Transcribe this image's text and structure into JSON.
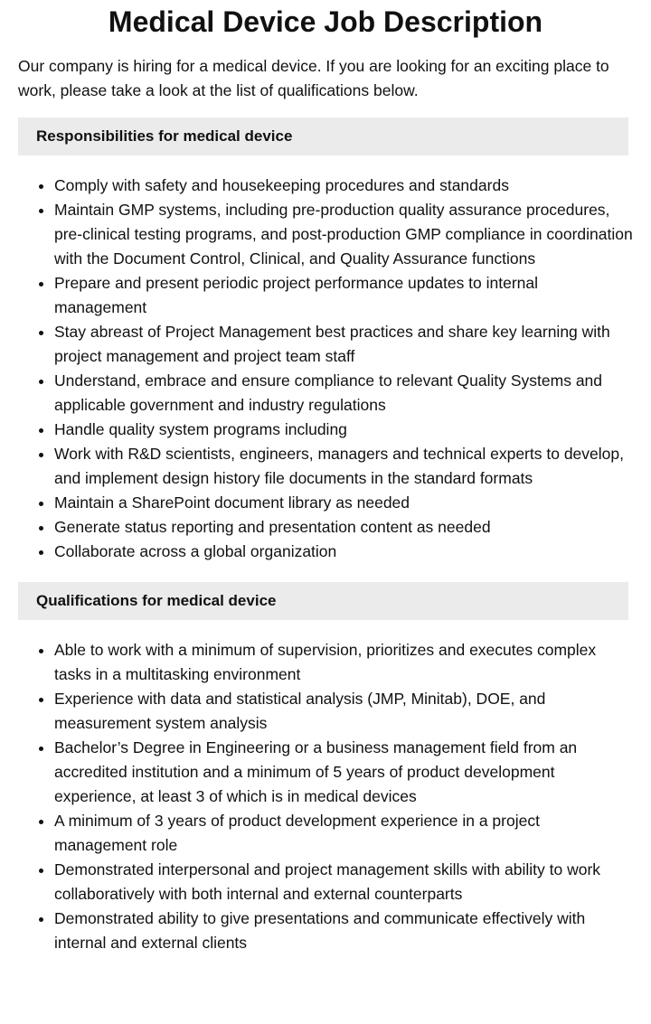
{
  "title": "Medical Device Job Description",
  "intro": "Our company is hiring for a medical device. If you are looking for an exciting place to work, please take a look at the list of qualifications below.",
  "responsibilities": {
    "heading": "Responsibilities for medical device",
    "items": [
      "Comply with safety and housekeeping procedures and standards",
      "Maintain GMP systems, including pre-production quality assurance procedures, pre-clinical testing programs, and post-production GMP compliance in coordination with the Document Control, Clinical, and Quality Assurance functions",
      "Prepare and present periodic project performance updates to internal management",
      "Stay abreast of Project Management best practices and share key learning with project management and project team staff",
      "Understand, embrace and ensure compliance to relevant Quality Systems and applicable government and industry regulations",
      "Handle quality system programs including",
      "Work with R&D scientists, engineers, managers and technical experts to develop, and implement design history file documents in the standard formats",
      "Maintain a SharePoint document library as needed",
      "Generate status reporting and presentation content as needed",
      "Collaborate across a global organization"
    ]
  },
  "qualifications": {
    "heading": "Qualifications for medical device",
    "items": [
      "Able to work with a minimum of supervision, prioritizes and executes complex tasks in a multitasking environment",
      "Experience with data and statistical analysis (JMP, Minitab), DOE, and measurement system analysis",
      "Bachelor’s Degree in Engineering or a business management field from an accredited institution and a minimum of 5 years of product development experience, at least 3 of which is in medical devices",
      "A minimum of 3 years of product development experience in a project management role",
      "Demonstrated interpersonal and project management skills with ability to work collaboratively with both internal and external counterparts",
      "Demonstrated ability to give presentations and communicate effectively with internal and external clients"
    ]
  }
}
